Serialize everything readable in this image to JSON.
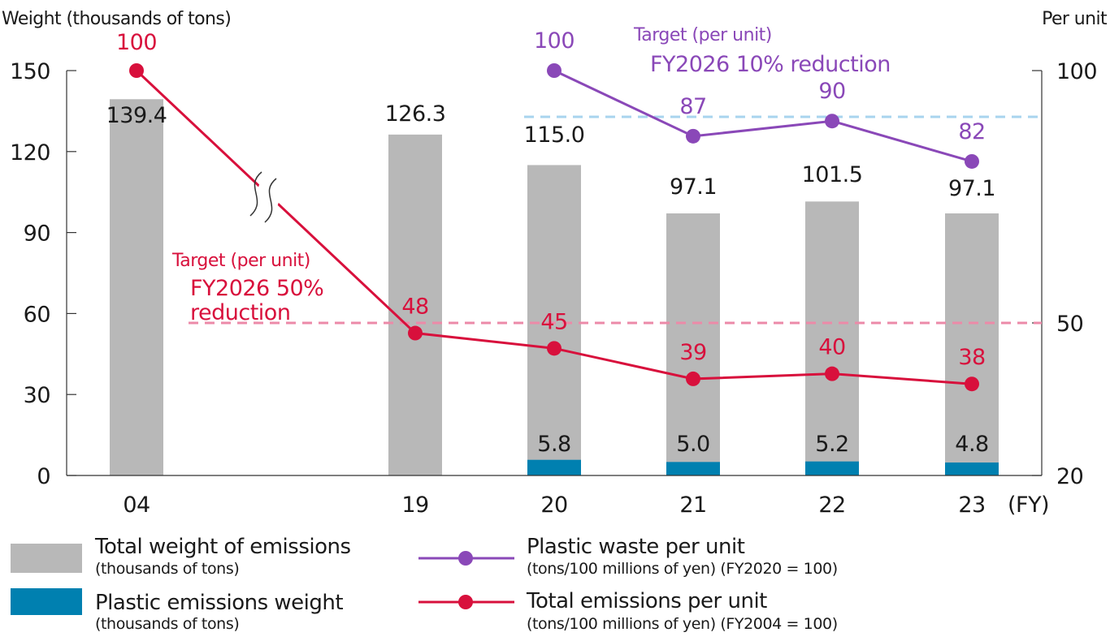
{
  "chart_data": {
    "type": "bar+line",
    "left_axis_label": "Weight (thousands of tons)",
    "right_axis_label": "Per unit",
    "x_unit": "(FY)",
    "categories": [
      "04",
      "19",
      "20",
      "21",
      "22",
      "23"
    ],
    "left_axis": {
      "ylim": [
        0,
        150
      ],
      "ticks": [
        "0",
        "30",
        "60",
        "90",
        "120",
        "150"
      ]
    },
    "right_axis": {
      "ticks": [
        "20",
        "50",
        "100"
      ]
    },
    "series": [
      {
        "name": "Total weight of emissions",
        "unit": "(thousands of tons)",
        "kind": "bar",
        "axis": "left",
        "color": "#b8b8b8",
        "values": [
          139.4,
          126.3,
          115.0,
          97.1,
          101.5,
          97.1
        ],
        "labels": [
          "139.4",
          "126.3",
          "115.0",
          "97.1",
          "101.5",
          "97.1"
        ]
      },
      {
        "name": "Plastic emissions weight",
        "unit": "(thousands of tons)",
        "kind": "bar",
        "axis": "left",
        "color": "#0080b0",
        "values": [
          null,
          null,
          5.8,
          5.0,
          5.2,
          4.8
        ],
        "labels": [
          "",
          "",
          "5.8",
          "5.0",
          "5.2",
          "4.8"
        ]
      },
      {
        "name": "Plastic waste per unit",
        "unit": "(tons/100 millions of yen) (FY2020 = 100)",
        "kind": "line",
        "axis": "right",
        "color": "#8a48b8",
        "values": [
          null,
          null,
          100,
          87,
          90,
          82
        ],
        "labels": [
          "",
          "",
          "100",
          "87",
          "90",
          "82"
        ]
      },
      {
        "name": "Total emissions per unit",
        "unit": "(tons/100 millions of yen) (FY2004 = 100)",
        "kind": "line",
        "axis": "right",
        "color": "#d8103c",
        "values": [
          100,
          48,
          45,
          39,
          40,
          38
        ],
        "labels": [
          "100",
          "48",
          "45",
          "39",
          "40",
          "38"
        ]
      }
    ],
    "targets": [
      {
        "line1": "Target (per unit)",
        "line2": "FY2026 10% reduction",
        "value": 90,
        "color": "#8a48b8",
        "line_color": "#a8d4ee"
      },
      {
        "line1": "Target (per unit)",
        "line2a": "FY2026 50%",
        "line2b": "reduction",
        "value": 50,
        "color": "#d8103c",
        "line_color": "#ec8aa8"
      }
    ],
    "legend_placement": "bottom",
    "grid": false,
    "axis_break": "between 04 and 19"
  }
}
